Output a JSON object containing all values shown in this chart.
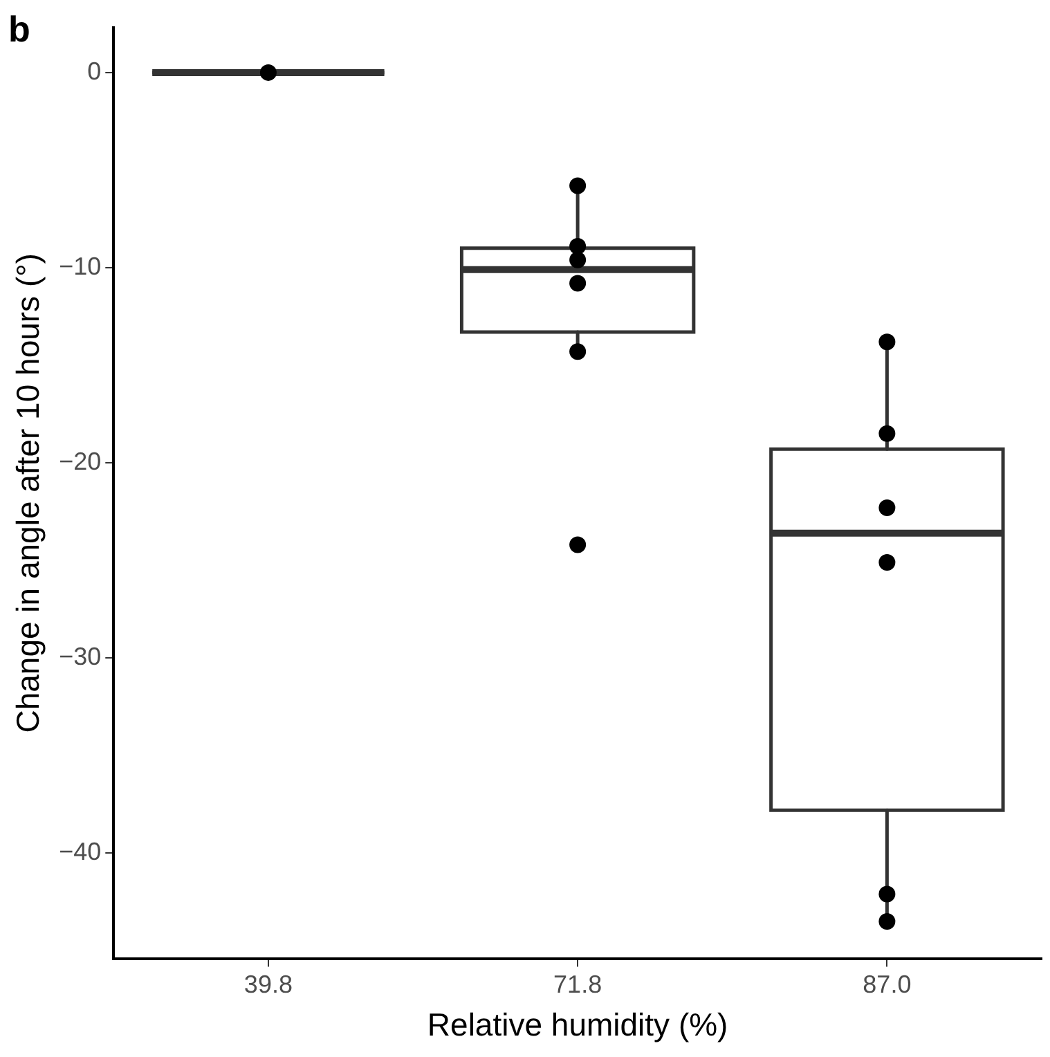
{
  "chart_data": {
    "type": "box",
    "xlabel": "Relative humidity (%)",
    "ylabel": "Change in angle after 10 hours (°)",
    "annotations": [
      "b"
    ],
    "categories": [
      "39.8",
      "71.8",
      "87.0"
    ],
    "boxes": [
      {
        "low": 0,
        "q1": 0,
        "median": 0,
        "q3": 0,
        "high": 0
      },
      {
        "low": -14.3,
        "q1": -13.3,
        "median": -10.1,
        "q3": -9.0,
        "high": -5.8
      },
      {
        "low": -43.5,
        "q1": -37.8,
        "median": -23.6,
        "q3": -19.3,
        "high": -13.8
      }
    ],
    "color": "#333333",
    "series": [
      {
        "type": "scatter",
        "color": "#000000",
        "marker": "circle",
        "x": [
          "39.8",
          "71.8",
          "71.8",
          "71.8",
          "71.8",
          "71.8",
          "71.8",
          "87.0",
          "87.0",
          "87.0",
          "87.0",
          "87.0",
          "87.0"
        ],
        "values": [
          0,
          -5.8,
          -8.9,
          -9.6,
          -10.8,
          -14.3,
          -24.2,
          -13.8,
          -18.5,
          -22.3,
          -25.1,
          -42.1,
          -43.5
        ]
      }
    ],
    "ylim": [
      -45.4,
      2.3
    ],
    "yticks": [
      {
        "value": -40,
        "label": "−40"
      },
      {
        "value": -30,
        "label": "−30"
      },
      {
        "value": -20,
        "label": "−20"
      },
      {
        "value": -10,
        "label": "−10"
      },
      0
    ],
    "grid": false,
    "legend": false
  }
}
